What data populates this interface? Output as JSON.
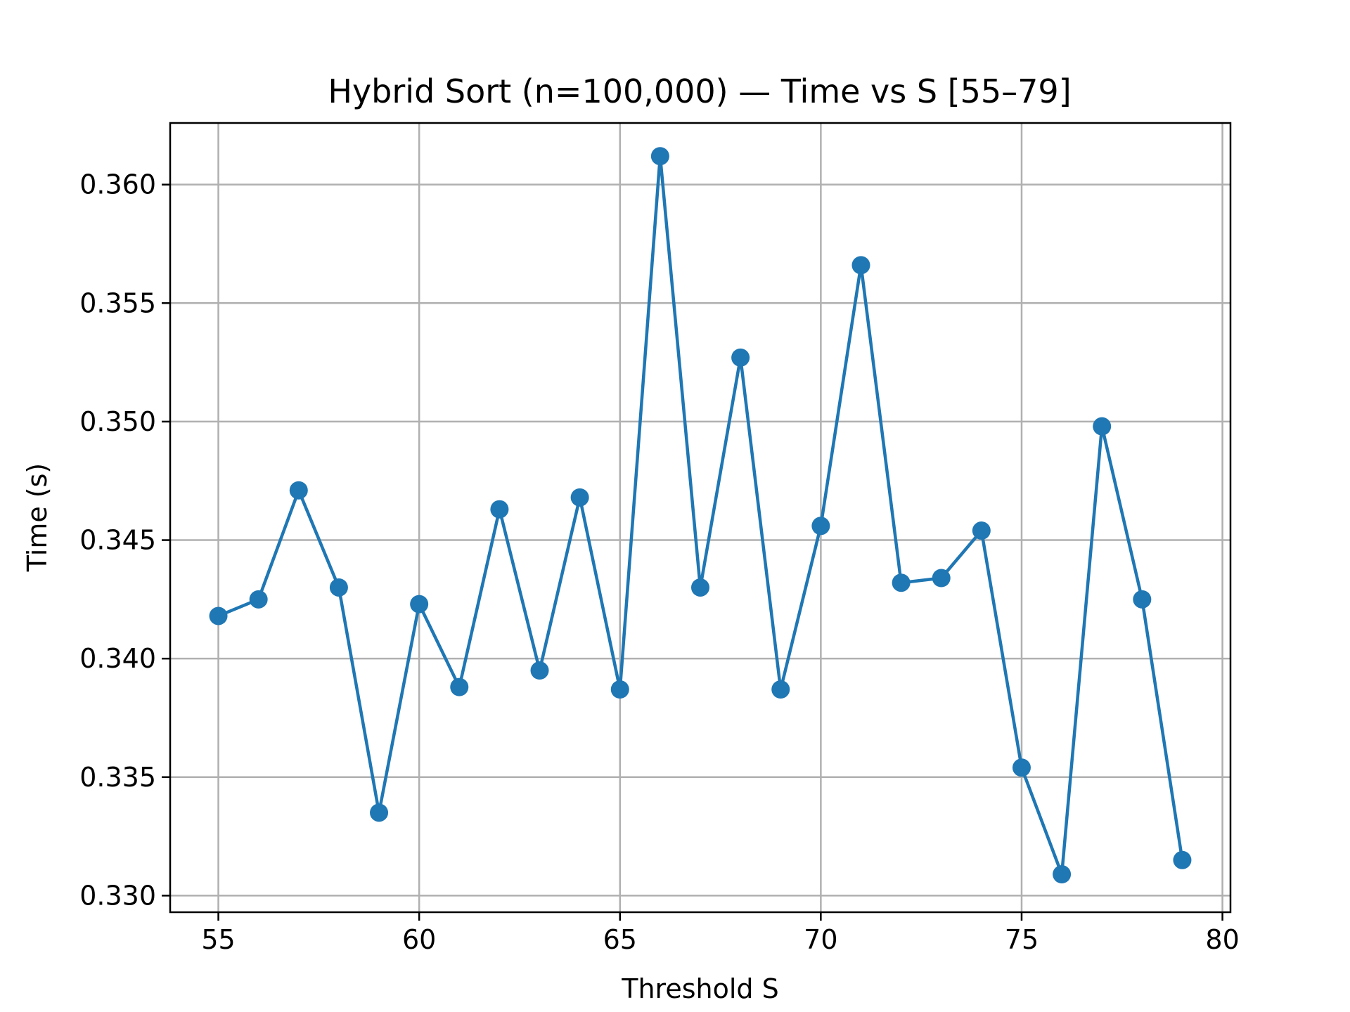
{
  "chart_data": {
    "type": "line",
    "title": "Hybrid Sort (n=100,000) — Time vs S [55–79]",
    "xlabel": "Threshold S",
    "ylabel": "Time (s)",
    "xlim": [
      53.8,
      80.2
    ],
    "ylim": [
      0.3293,
      0.3626
    ],
    "xticks": [
      55,
      60,
      65,
      70,
      75,
      80
    ],
    "xtick_labels": [
      "55",
      "60",
      "65",
      "70",
      "75",
      "80"
    ],
    "yticks": [
      0.33,
      0.335,
      0.34,
      0.345,
      0.35,
      0.355,
      0.36
    ],
    "ytick_labels": [
      "0.330",
      "0.335",
      "0.340",
      "0.345",
      "0.350",
      "0.355",
      "0.360"
    ],
    "grid": true,
    "series": [
      {
        "color": "#1f77b4",
        "marker": "circle",
        "x": [
          55,
          56,
          57,
          58,
          59,
          60,
          61,
          62,
          63,
          64,
          65,
          66,
          67,
          68,
          69,
          70,
          71,
          72,
          73,
          74,
          75,
          76,
          77,
          78,
          79
        ],
        "y": [
          0.3418,
          0.3425,
          0.3471,
          0.343,
          0.3335,
          0.3423,
          0.3388,
          0.3463,
          0.3395,
          0.3468,
          0.3387,
          0.3612,
          0.343,
          0.3527,
          0.3387,
          0.3456,
          0.3566,
          0.3432,
          0.3434,
          0.3454,
          0.3354,
          0.3309,
          0.3498,
          0.3425,
          0.3315
        ]
      }
    ]
  }
}
